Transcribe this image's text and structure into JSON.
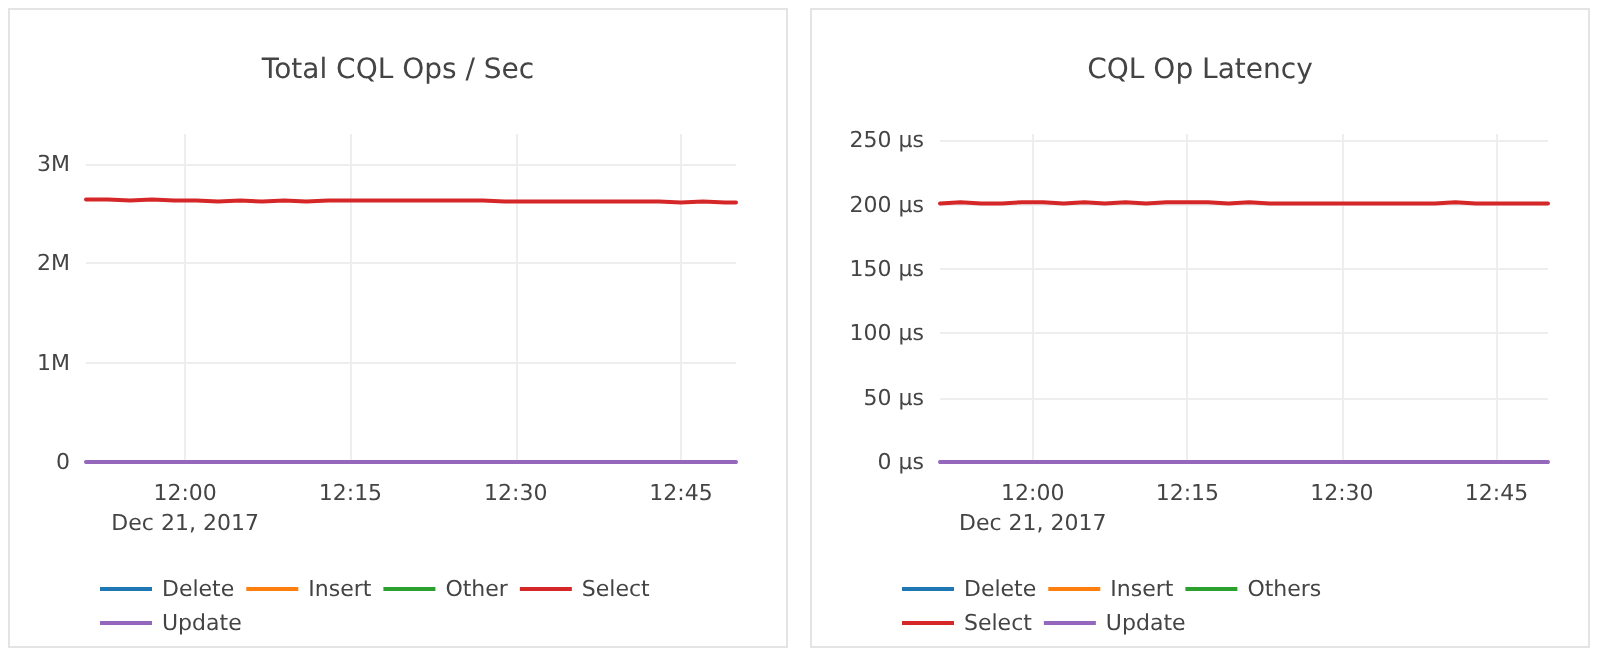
{
  "chart_data": [
    {
      "type": "line",
      "title": "Total CQL Ops / Sec",
      "x": [
        "2017-12-21T11:51",
        "2017-12-21T11:53",
        "2017-12-21T11:55",
        "2017-12-21T11:57",
        "2017-12-21T11:59",
        "2017-12-21T12:01",
        "2017-12-21T12:03",
        "2017-12-21T12:05",
        "2017-12-21T12:07",
        "2017-12-21T12:09",
        "2017-12-21T12:11",
        "2017-12-21T12:13",
        "2017-12-21T12:15",
        "2017-12-21T12:17",
        "2017-12-21T12:19",
        "2017-12-21T12:21",
        "2017-12-21T12:23",
        "2017-12-21T12:25",
        "2017-12-21T12:27",
        "2017-12-21T12:29",
        "2017-12-21T12:31",
        "2017-12-21T12:33",
        "2017-12-21T12:35",
        "2017-12-21T12:37",
        "2017-12-21T12:39",
        "2017-12-21T12:41",
        "2017-12-21T12:43",
        "2017-12-21T12:45",
        "2017-12-21T12:47",
        "2017-12-21T12:49",
        "2017-12-21T12:50"
      ],
      "series": [
        {
          "name": "Delete",
          "color": "#1f77b4",
          "values": [
            null,
            null,
            null,
            null,
            null,
            null,
            null,
            null,
            null,
            null,
            null,
            null,
            null,
            null,
            null,
            null,
            null,
            null,
            null,
            null,
            null,
            null,
            null,
            null,
            null,
            null,
            null,
            null,
            null,
            null,
            null
          ]
        },
        {
          "name": "Insert",
          "color": "#ff7f0e",
          "values": [
            null,
            null,
            null,
            null,
            null,
            null,
            null,
            null,
            null,
            null,
            null,
            null,
            null,
            null,
            null,
            null,
            null,
            null,
            null,
            null,
            null,
            null,
            null,
            null,
            null,
            null,
            null,
            null,
            null,
            null,
            null
          ]
        },
        {
          "name": "Other",
          "color": "#2ca02c",
          "values": [
            null,
            null,
            null,
            null,
            null,
            null,
            null,
            null,
            null,
            null,
            null,
            null,
            null,
            null,
            null,
            null,
            null,
            null,
            null,
            null,
            null,
            null,
            null,
            null,
            null,
            null,
            null,
            null,
            null,
            null,
            null
          ]
        },
        {
          "name": "Select",
          "color": "#d62728",
          "values": [
            2640000,
            2640000,
            2630000,
            2640000,
            2630000,
            2630000,
            2620000,
            2630000,
            2620000,
            2630000,
            2620000,
            2630000,
            2630000,
            2630000,
            2630000,
            2630000,
            2630000,
            2630000,
            2630000,
            2620000,
            2620000,
            2620000,
            2620000,
            2620000,
            2620000,
            2620000,
            2620000,
            2610000,
            2620000,
            2610000,
            2610000
          ]
        },
        {
          "name": "Update",
          "color": "#9467bd",
          "values": [
            0,
            0,
            0,
            0,
            0,
            0,
            0,
            0,
            0,
            0,
            0,
            0,
            0,
            0,
            0,
            0,
            0,
            0,
            0,
            0,
            0,
            0,
            0,
            0,
            0,
            0,
            0,
            0,
            0,
            0,
            0
          ]
        }
      ],
      "xlim": [
        "2017-12-21T11:51",
        "2017-12-21T12:50"
      ],
      "xticks": [
        {
          "value": "2017-12-21T12:00",
          "label": "12:00\nDec 21, 2017"
        },
        {
          "value": "2017-12-21T12:15",
          "label": "12:15"
        },
        {
          "value": "2017-12-21T12:30",
          "label": "12:30"
        },
        {
          "value": "2017-12-21T12:45",
          "label": "12:45"
        }
      ],
      "ylim": [
        0,
        3300000
      ],
      "yticks": [
        0,
        {
          "value": 1000000,
          "label": "1M"
        },
        {
          "value": 2000000,
          "label": "2M"
        },
        {
          "value": 3000000,
          "label": "3M"
        }
      ],
      "grid": true,
      "legend": "bottom",
      "marker": "none",
      "line_style": "solid"
    },
    {
      "type": "line",
      "title": "CQL Op Latency",
      "x": [
        "2017-12-21T11:51",
        "2017-12-21T11:53",
        "2017-12-21T11:55",
        "2017-12-21T11:57",
        "2017-12-21T11:59",
        "2017-12-21T12:01",
        "2017-12-21T12:03",
        "2017-12-21T12:05",
        "2017-12-21T12:07",
        "2017-12-21T12:09",
        "2017-12-21T12:11",
        "2017-12-21T12:13",
        "2017-12-21T12:15",
        "2017-12-21T12:17",
        "2017-12-21T12:19",
        "2017-12-21T12:21",
        "2017-12-21T12:23",
        "2017-12-21T12:25",
        "2017-12-21T12:27",
        "2017-12-21T12:29",
        "2017-12-21T12:31",
        "2017-12-21T12:33",
        "2017-12-21T12:35",
        "2017-12-21T12:37",
        "2017-12-21T12:39",
        "2017-12-21T12:41",
        "2017-12-21T12:43",
        "2017-12-21T12:45",
        "2017-12-21T12:47",
        "2017-12-21T12:49",
        "2017-12-21T12:50"
      ],
      "series": [
        {
          "name": "Delete",
          "color": "#1f77b4",
          "values": [
            null,
            null,
            null,
            null,
            null,
            null,
            null,
            null,
            null,
            null,
            null,
            null,
            null,
            null,
            null,
            null,
            null,
            null,
            null,
            null,
            null,
            null,
            null,
            null,
            null,
            null,
            null,
            null,
            null,
            null,
            null
          ]
        },
        {
          "name": "Insert",
          "color": "#ff7f0e",
          "values": [
            null,
            null,
            null,
            null,
            null,
            null,
            null,
            null,
            null,
            null,
            null,
            null,
            null,
            null,
            null,
            null,
            null,
            null,
            null,
            null,
            null,
            null,
            null,
            null,
            null,
            null,
            null,
            null,
            null,
            null,
            null
          ]
        },
        {
          "name": "Others",
          "color": "#2ca02c",
          "values": [
            null,
            null,
            null,
            null,
            null,
            null,
            null,
            null,
            null,
            null,
            null,
            null,
            null,
            null,
            null,
            null,
            null,
            null,
            null,
            null,
            null,
            null,
            null,
            null,
            null,
            null,
            null,
            null,
            null,
            null,
            null
          ]
        },
        {
          "name": "Select",
          "color": "#d62728",
          "values": [
            201,
            202,
            201,
            201,
            202,
            202,
            201,
            202,
            201,
            202,
            201,
            202,
            202,
            202,
            201,
            202,
            201,
            201,
            201,
            201,
            201,
            201,
            201,
            201,
            201,
            202,
            201,
            201,
            201,
            201,
            201
          ]
        },
        {
          "name": "Update",
          "color": "#9467bd",
          "values": [
            0,
            0,
            0,
            0,
            0,
            0,
            0,
            0,
            0,
            0,
            0,
            0,
            0,
            0,
            0,
            0,
            0,
            0,
            0,
            0,
            0,
            0,
            0,
            0,
            0,
            0,
            0,
            0,
            0,
            0,
            0
          ]
        }
      ],
      "xlim": [
        "2017-12-21T11:51",
        "2017-12-21T12:50"
      ],
      "xticks": [
        {
          "value": "2017-12-21T12:00",
          "label": "12:00\nDec 21, 2017"
        },
        {
          "value": "2017-12-21T12:15",
          "label": "12:15"
        },
        {
          "value": "2017-12-21T12:30",
          "label": "12:30"
        },
        {
          "value": "2017-12-21T12:45",
          "label": "12:45"
        }
      ],
      "ylim": [
        0,
        255
      ],
      "yticks": [
        {
          "value": 0,
          "label": "0 µs"
        },
        {
          "value": 50,
          "label": "50 µs"
        },
        {
          "value": 100,
          "label": "100 µs"
        },
        {
          "value": 150,
          "label": "150 µs"
        },
        {
          "value": 200,
          "label": "200 µs"
        },
        {
          "value": 250,
          "label": "250 µs"
        }
      ],
      "grid": true,
      "legend": "bottom",
      "marker": "none",
      "line_style": "solid"
    }
  ]
}
